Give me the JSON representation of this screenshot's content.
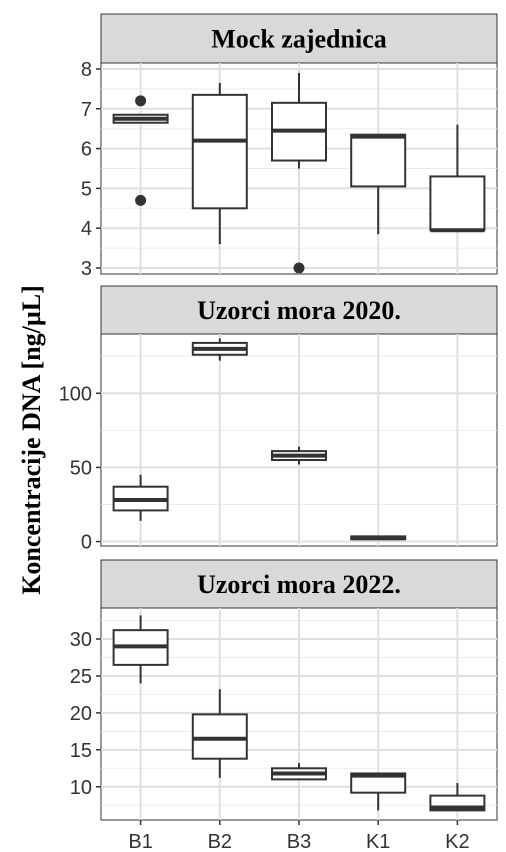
{
  "chart_data": {
    "type": "boxplot",
    "ylabel": "Koncentracije DNA  [ng/µL]",
    "categories": [
      "B1",
      "B2",
      "B3",
      "K1",
      "K2"
    ],
    "colors": {
      "panel": "#ffffff",
      "grid": "#ebebeb",
      "strip": "#d9d9d9",
      "box": "#333333"
    },
    "panels": [
      {
        "title": "Mock zajednica",
        "ylim": [
          2.85,
          8.15
        ],
        "yticks": [
          3,
          4,
          5,
          6,
          7,
          8
        ],
        "minor": [
          3.5,
          4.5,
          5.5,
          6.5,
          7.5
        ],
        "boxes": [
          {
            "category": "B1",
            "q1": 6.65,
            "median": 6.75,
            "q3": 6.85,
            "low": 6.65,
            "high": 6.85,
            "outliers": [
              7.2,
              4.7
            ]
          },
          {
            "category": "B2",
            "q1": 4.5,
            "median": 6.2,
            "q3": 7.35,
            "low": 3.6,
            "high": 7.65,
            "outliers": []
          },
          {
            "category": "B3",
            "q1": 5.7,
            "median": 6.45,
            "q3": 7.15,
            "low": 5.5,
            "high": 7.9,
            "outliers": [
              3.0
            ]
          },
          {
            "category": "K1",
            "q1": 5.05,
            "median": 6.3,
            "q3": 6.35,
            "low": 3.85,
            "high": 6.35,
            "outliers": []
          },
          {
            "category": "K2",
            "q1": 3.95,
            "median": 3.95,
            "q3": 5.3,
            "low": 3.95,
            "high": 6.6,
            "outliers": []
          }
        ]
      },
      {
        "title": "Uzorci mora 2020.",
        "ylim": [
          -3,
          140
        ],
        "yticks": [
          0,
          50,
          100
        ],
        "minor": [
          25,
          75,
          125
        ],
        "boxes": [
          {
            "category": "B1",
            "q1": 21,
            "median": 28,
            "q3": 37,
            "low": 14,
            "high": 45,
            "outliers": []
          },
          {
            "category": "B2",
            "q1": 126,
            "median": 130,
            "q3": 134,
            "low": 122,
            "high": 137,
            "outliers": []
          },
          {
            "category": "B3",
            "q1": 55,
            "median": 58,
            "q3": 61,
            "low": 52,
            "high": 64,
            "outliers": []
          },
          {
            "category": "K1",
            "q1": 1.5,
            "median": 2.5,
            "q3": 3.5,
            "low": 1.5,
            "high": 3.5,
            "outliers": []
          },
          {
            "category": "K2",
            "q1": null,
            "median": null,
            "q3": null,
            "low": null,
            "high": null,
            "outliers": []
          }
        ]
      },
      {
        "title": "Uzorci mora 2022.",
        "ylim": [
          5.5,
          34.2
        ],
        "yticks": [
          10,
          15,
          20,
          25,
          30
        ],
        "minor": [
          7.5,
          12.5,
          17.5,
          22.5,
          27.5,
          32.5
        ],
        "boxes": [
          {
            "category": "B1",
            "q1": 26.5,
            "median": 29,
            "q3": 31.2,
            "low": 24,
            "high": 33.2,
            "outliers": []
          },
          {
            "category": "B2",
            "q1": 13.8,
            "median": 16.5,
            "q3": 19.8,
            "low": 11.2,
            "high": 23.2,
            "outliers": []
          },
          {
            "category": "B3",
            "q1": 11,
            "median": 11.8,
            "q3": 12.5,
            "low": 11,
            "high": 13.2,
            "outliers": []
          },
          {
            "category": "K1",
            "q1": 9.2,
            "median": 11.5,
            "q3": 11.8,
            "low": 6.8,
            "high": 11.8,
            "outliers": []
          },
          {
            "category": "K2",
            "q1": 6.8,
            "median": 7.2,
            "q3": 8.8,
            "low": 6.8,
            "high": 10.5,
            "outliers": []
          }
        ]
      }
    ]
  }
}
